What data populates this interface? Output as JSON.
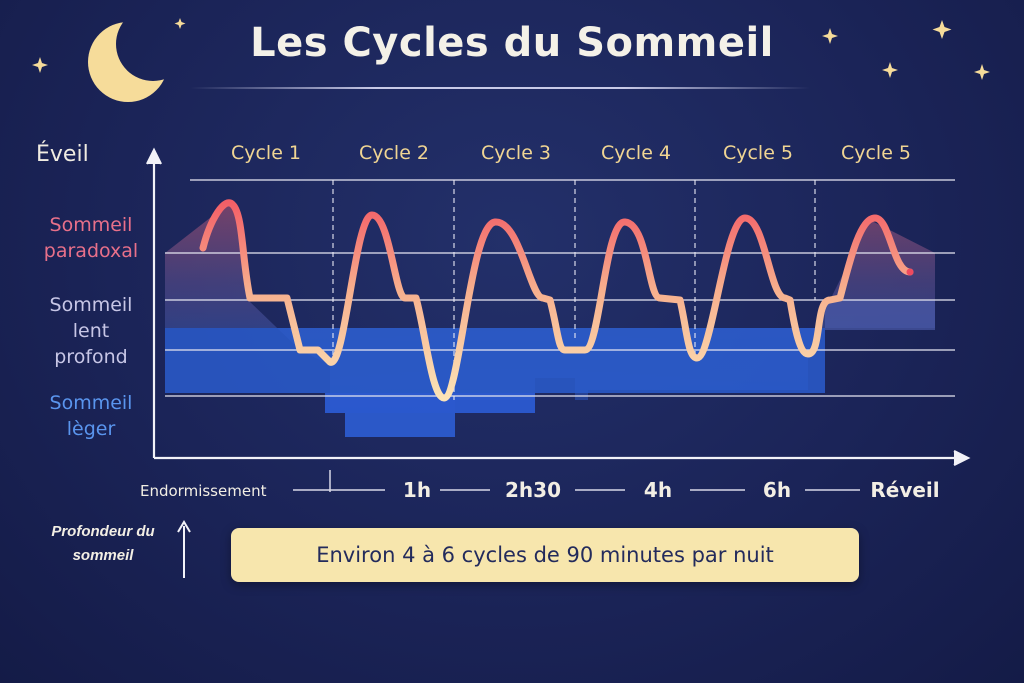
{
  "title": "Les Cycles du Sommeil",
  "y_axis": {
    "top_label": "Éveil",
    "stages": [
      {
        "name": "Sommeil paradoxal",
        "lines": [
          "Sommeil",
          "paradoxal"
        ],
        "color": "#e8708a"
      },
      {
        "name": "Sommeil lent profond",
        "lines": [
          "Sommeil",
          "lent",
          "profond"
        ],
        "color": "#c7c6e6"
      },
      {
        "name": "Sommeil léger",
        "lines": [
          "Sommeil",
          "lèger"
        ],
        "color": "#5a95ee"
      }
    ]
  },
  "cycles": [
    "Cycle 1",
    "Cycle 2",
    "Cycle 3",
    "Cycle 4",
    "Cycle 5",
    "Cycle 5"
  ],
  "x_axis": {
    "start": "Endormissement",
    "ticks": [
      "1h",
      "2h30",
      "4h",
      "6h",
      "Réveil"
    ]
  },
  "depth_label": [
    "Profondeur du",
    "sommeil"
  ],
  "note": "Environ 4 à 6 cycles de 90 minutes par nuit",
  "colors": {
    "background": "#1b2458",
    "moon": "#f6dc9a",
    "curve_high": "#f36b6b",
    "curve_low": "#f8e0b0",
    "deep_fill": "#2c5fcf",
    "note_bg": "#f7e6ad"
  }
}
